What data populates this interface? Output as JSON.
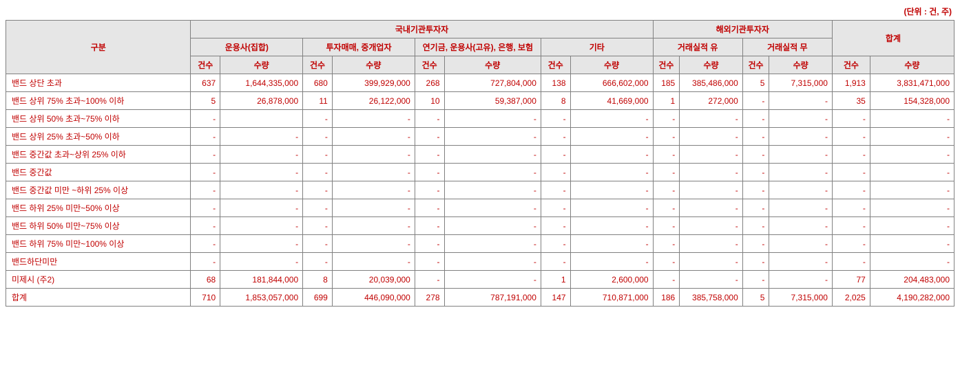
{
  "unit_note": "(단위 : 건, 주)",
  "headers": {
    "gubun": "구분",
    "domestic": "국내기관투자자",
    "foreign": "해외기관투자자",
    "total": "합계",
    "g1": "운용사(집합)",
    "g2": "투자매매, 중개업자",
    "g3": "연기금, 운용사(고유), 은행, 보험",
    "g4": "기타",
    "f1": "거래실적 유",
    "f2": "거래실적 무",
    "cnt": "건수",
    "qty": "수량"
  },
  "rows": [
    {
      "label": "밴드 상단 초과",
      "c0": "637",
      "q0": "1,644,335,000",
      "c1": "680",
      "q1": "399,929,000",
      "c2": "268",
      "q2": "727,804,000",
      "c3": "138",
      "q3": "666,602,000",
      "c4": "185",
      "q4": "385,486,000",
      "c5": "5",
      "q5": "7,315,000",
      "tc": "1,913",
      "tq": "3,831,471,000"
    },
    {
      "label": "밴드 상위 75% 초과~100% 이하",
      "c0": "5",
      "q0": "26,878,000",
      "c1": "11",
      "q1": "26,122,000",
      "c2": "10",
      "q2": "59,387,000",
      "c3": "8",
      "q3": "41,669,000",
      "c4": "1",
      "q4": "272,000",
      "c5": "-",
      "q5": "-",
      "tc": "35",
      "tq": "154,328,000"
    },
    {
      "label": "밴드 상위 50% 초과~75% 이하",
      "c0": "-",
      "q0": "",
      "c1": "-",
      "q1": "-",
      "c2": "-",
      "q2": "-",
      "c3": "-",
      "q3": "-",
      "c4": "-",
      "q4": "-",
      "c5": "-",
      "q5": "-",
      "tc": "-",
      "tq": "-"
    },
    {
      "label": "밴드 상위 25% 초과~50% 이하",
      "c0": "-",
      "q0": "-",
      "c1": "-",
      "q1": "-",
      "c2": "-",
      "q2": "-",
      "c3": "-",
      "q3": "-",
      "c4": "-",
      "q4": "-",
      "c5": "-",
      "q5": "-",
      "tc": "-",
      "tq": "-"
    },
    {
      "label": "밴드 중간값 초과~상위 25% 이하",
      "c0": "-",
      "q0": "-",
      "c1": "-",
      "q1": "-",
      "c2": "-",
      "q2": "-",
      "c3": "-",
      "q3": "-",
      "c4": "-",
      "q4": "-",
      "c5": "-",
      "q5": "-",
      "tc": "-",
      "tq": "-"
    },
    {
      "label": "밴드 중간값",
      "c0": "-",
      "q0": "-",
      "c1": "-",
      "q1": "-",
      "c2": "-",
      "q2": "-",
      "c3": "-",
      "q3": "-",
      "c4": "-",
      "q4": "-",
      "c5": "-",
      "q5": "-",
      "tc": "-",
      "tq": "-"
    },
    {
      "label": "밴드 중간값 미만 ~하위 25% 이상",
      "c0": "-",
      "q0": "-",
      "c1": "-",
      "q1": "-",
      "c2": "-",
      "q2": "-",
      "c3": "-",
      "q3": "-",
      "c4": "-",
      "q4": "-",
      "c5": "-",
      "q5": "-",
      "tc": "-",
      "tq": "-"
    },
    {
      "label": "밴드 하위 25% 미만~50% 이상",
      "c0": "-",
      "q0": "-",
      "c1": "-",
      "q1": "-",
      "c2": "-",
      "q2": "-",
      "c3": "-",
      "q3": "-",
      "c4": "-",
      "q4": "-",
      "c5": "-",
      "q5": "-",
      "tc": "-",
      "tq": "-"
    },
    {
      "label": "밴드 하위 50% 미만~75% 이상",
      "c0": "-",
      "q0": "-",
      "c1": "-",
      "q1": "-",
      "c2": "-",
      "q2": "-",
      "c3": "-",
      "q3": "-",
      "c4": "-",
      "q4": "-",
      "c5": "-",
      "q5": "-",
      "tc": "-",
      "tq": "-"
    },
    {
      "label": "밴드 하위 75% 미만~100% 이상",
      "c0": "-",
      "q0": "-",
      "c1": "-",
      "q1": "-",
      "c2": "-",
      "q2": "-",
      "c3": "-",
      "q3": "-",
      "c4": "-",
      "q4": "-",
      "c5": "-",
      "q5": "-",
      "tc": "-",
      "tq": "-"
    },
    {
      "label": "밴드하단미만",
      "c0": "-",
      "q0": "-",
      "c1": "-",
      "q1": "-",
      "c2": "-",
      "q2": "-",
      "c3": "-",
      "q3": "-",
      "c4": "-",
      "q4": "-",
      "c5": "-",
      "q5": "-",
      "tc": "-",
      "tq": "-"
    },
    {
      "label": "미제시 (주2)",
      "c0": "68",
      "q0": "181,844,000",
      "c1": "8",
      "q1": "20,039,000",
      "c2": "-",
      "q2": "-",
      "c3": "1",
      "q3": "2,600,000",
      "c4": "-",
      "q4": "-",
      "c5": "-",
      "q5": "-",
      "tc": "77",
      "tq": "204,483,000"
    },
    {
      "label": "합계",
      "c0": "710",
      "q0": "1,853,057,000",
      "c1": "699",
      "q1": "446,090,000",
      "c2": "278",
      "q2": "787,191,000",
      "c3": "147",
      "q3": "710,871,000",
      "c4": "186",
      "q4": "385,758,000",
      "c5": "5",
      "q5": "7,315,000",
      "tc": "2,025",
      "tq": "4,190,282,000"
    }
  ],
  "colors": {
    "text": "#c00000",
    "header_bg": "#e6e6e6",
    "border": "#808080",
    "background": "#ffffff"
  }
}
